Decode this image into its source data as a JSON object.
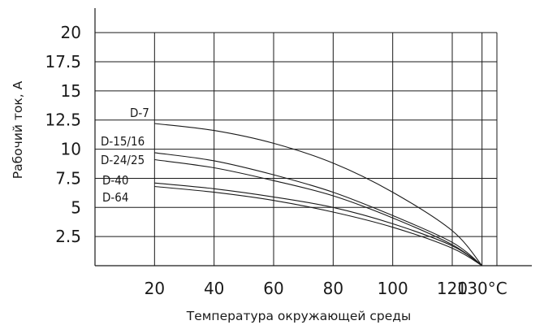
{
  "chart_data": {
    "type": "line",
    "xlabel": "Температура окружающей среды",
    "ylabel": "Рабочий ток, А",
    "xlim": [
      0,
      135
    ],
    "ylim": [
      0,
      20.5
    ],
    "grid": true,
    "x_ticks": [
      20,
      40,
      60,
      80,
      100,
      120,
      130
    ],
    "x_tick_labels": [
      "20",
      "40",
      "60",
      "80",
      "100",
      "120",
      "130°C"
    ],
    "y_ticks": [
      20,
      17.5,
      15,
      12.5,
      10,
      7.5,
      5,
      2.5
    ],
    "y_tick_labels": [
      "20",
      "17.5",
      "15",
      "12.5",
      "10",
      "7.5",
      "5",
      "2.5"
    ],
    "series": [
      {
        "name": "D-7",
        "x": [
          20,
          40,
          60,
          80,
          100,
          120,
          130
        ],
        "y": [
          12.2,
          11.6,
          10.5,
          8.8,
          6.3,
          3.0,
          0
        ]
      },
      {
        "name": "D-15/16",
        "x": [
          20,
          40,
          60,
          80,
          100,
          120,
          130
        ],
        "y": [
          9.7,
          9.0,
          7.8,
          6.3,
          4.3,
          2.0,
          0
        ]
      },
      {
        "name": "D-24/25",
        "x": [
          20,
          40,
          60,
          80,
          100,
          120,
          130
        ],
        "y": [
          9.1,
          8.4,
          7.3,
          6.0,
          4.1,
          1.8,
          0
        ]
      },
      {
        "name": "D-40",
        "x": [
          20,
          40,
          60,
          80,
          100,
          120,
          130
        ],
        "y": [
          7.1,
          6.6,
          5.9,
          5.0,
          3.6,
          1.7,
          0
        ]
      },
      {
        "name": "D-64",
        "x": [
          20,
          40,
          60,
          80,
          100,
          120,
          130
        ],
        "y": [
          6.8,
          6.3,
          5.6,
          4.6,
          3.3,
          1.5,
          0
        ]
      }
    ],
    "series_colors": [
      "#1a1a1a"
    ]
  }
}
